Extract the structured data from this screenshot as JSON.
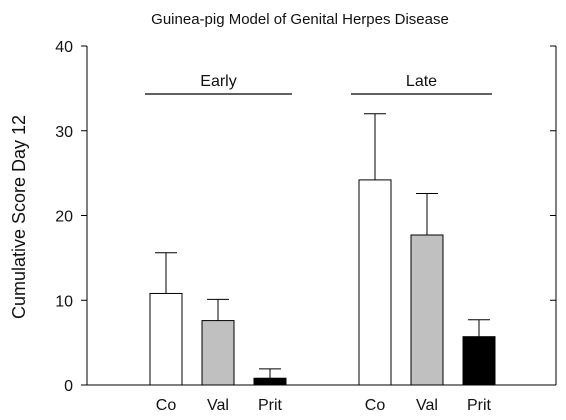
{
  "chart_data": {
    "type": "bar",
    "title": "Guinea-pig Model of Genital Herpes Disease",
    "xlabel": "",
    "ylabel": "Cumulative Score Day 12",
    "ylim": [
      0,
      40
    ],
    "yticks": [
      0,
      10,
      20,
      30,
      40
    ],
    "grid": false,
    "error_bars": true,
    "groups": [
      {
        "label": "Early",
        "bars": [
          {
            "category": "Co",
            "value": 10.8,
            "error": 4.8,
            "color": "#ffffff"
          },
          {
            "category": "Val",
            "value": 7.6,
            "error": 2.5,
            "color": "#c0c0c0"
          },
          {
            "category": "Prit",
            "value": 0.8,
            "error": 1.1,
            "color": "#000000"
          }
        ]
      },
      {
        "label": "Late",
        "bars": [
          {
            "category": "Co",
            "value": 24.2,
            "error": 7.8,
            "color": "#ffffff"
          },
          {
            "category": "Val",
            "value": 17.7,
            "error": 4.9,
            "color": "#c0c0c0"
          },
          {
            "category": "Prit",
            "value": 5.7,
            "error": 2.0,
            "color": "#000000"
          }
        ]
      }
    ]
  }
}
